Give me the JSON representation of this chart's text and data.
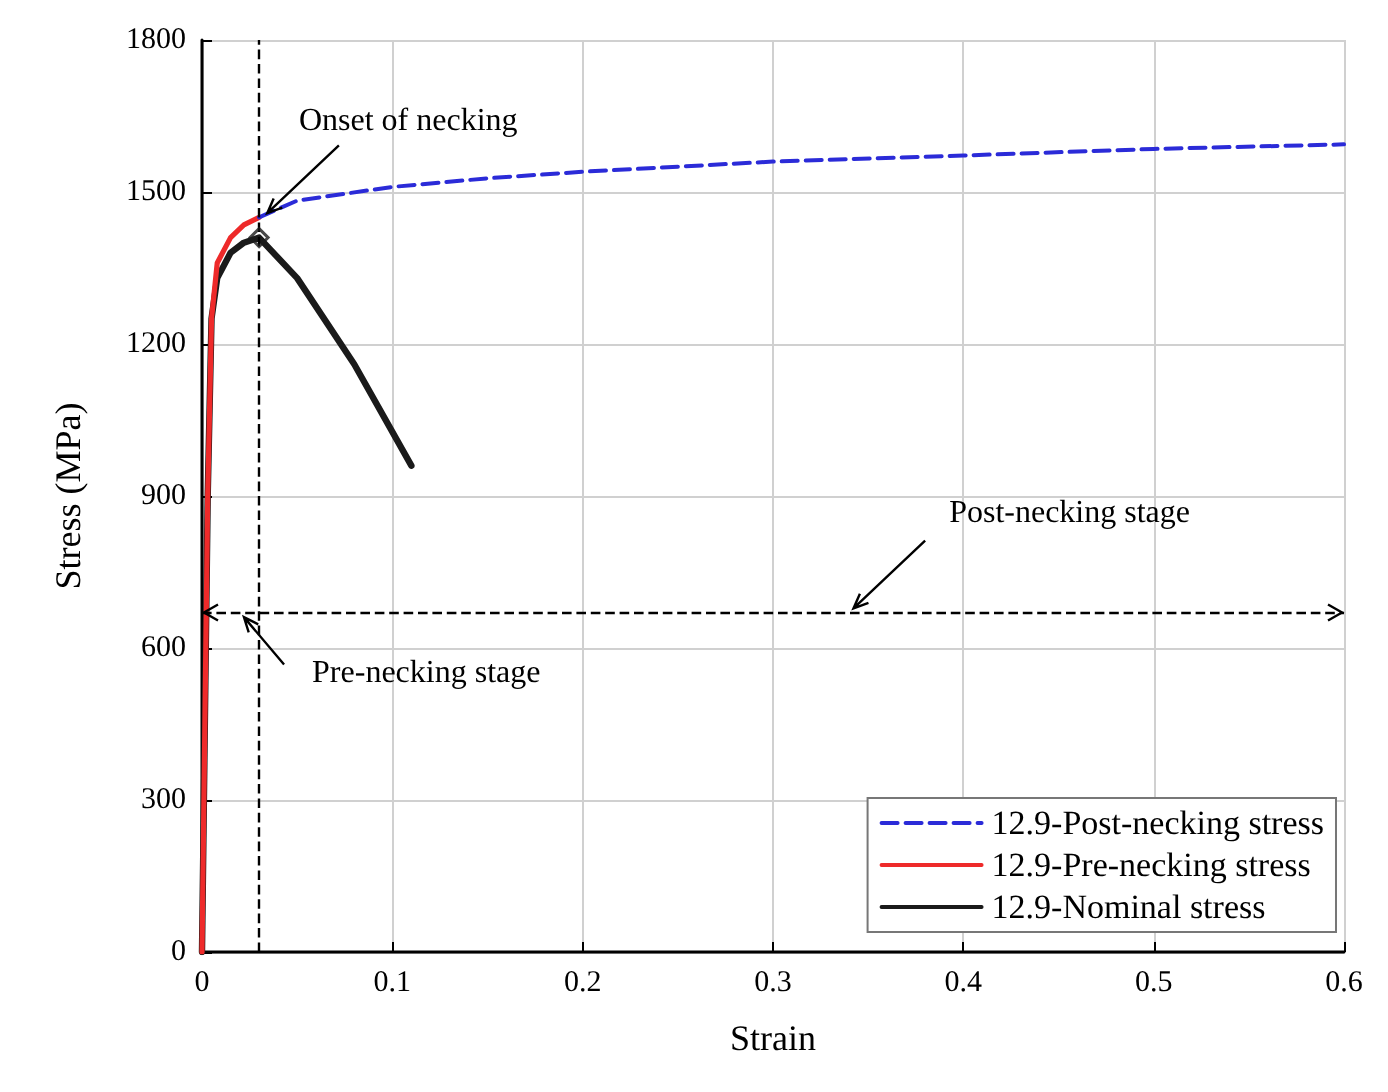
{
  "chart_data": {
    "type": "line",
    "xlabel": "Strain",
    "ylabel": "Stress (MPa)",
    "xlim": [
      0,
      0.6
    ],
    "xticks": [
      0,
      0.1,
      0.2,
      0.3,
      0.4,
      0.5,
      0.6
    ],
    "ylim": [
      0,
      1800
    ],
    "yticks": [
      0,
      300,
      600,
      900,
      1200,
      1500,
      1800
    ],
    "grid": true,
    "legend": "bottom right",
    "marker": "none",
    "series": [
      {
        "name": "12.9-Post-necking stress",
        "color": "#2b2bd8",
        "line_style": "dashed",
        "x": [
          0.03,
          0.05,
          0.1,
          0.15,
          0.2,
          0.3,
          0.4,
          0.5,
          0.6
        ],
        "values": [
          1450,
          1483,
          1510,
          1527,
          1540,
          1560,
          1572,
          1585,
          1594
        ]
      },
      {
        "name": "12.9-Pre-necking stress",
        "color": "#ee2a2a",
        "line_style": "solid",
        "x": [
          0,
          0.003,
          0.005,
          0.008,
          0.015,
          0.022,
          0.03
        ],
        "values": [
          0,
          900,
          1250,
          1360,
          1410,
          1435,
          1450
        ]
      },
      {
        "name": "12.9-Nominal stress",
        "color": "#1a1a1a",
        "line_style": "solid",
        "x": [
          0,
          0.003,
          0.005,
          0.008,
          0.015,
          0.022,
          0.03,
          0.05,
          0.08,
          0.11
        ],
        "values": [
          0,
          900,
          1250,
          1330,
          1380,
          1400,
          1410,
          1330,
          1160,
          960
        ]
      },
      {
        "type": "scatter",
        "marker": "diamond",
        "color": "#1a1a1a",
        "x": [
          0.03
        ],
        "values": [
          1410
        ]
      }
    ],
    "ref_lines": [
      {
        "axis": "x",
        "value": 0.03,
        "line_style": "dashed",
        "color": "#000000"
      },
      {
        "axis": "y",
        "value": 670,
        "line_style": "dashed",
        "color": "#000000"
      }
    ],
    "annotations": [
      {
        "text": "Onset of necking",
        "x": 0.032,
        "y": 1450
      },
      {
        "text": "Post-necking stage",
        "x": 0.34,
        "y": 670
      },
      {
        "text": "Pre-necking stage",
        "x": 0.02,
        "y": 670
      }
    ]
  }
}
